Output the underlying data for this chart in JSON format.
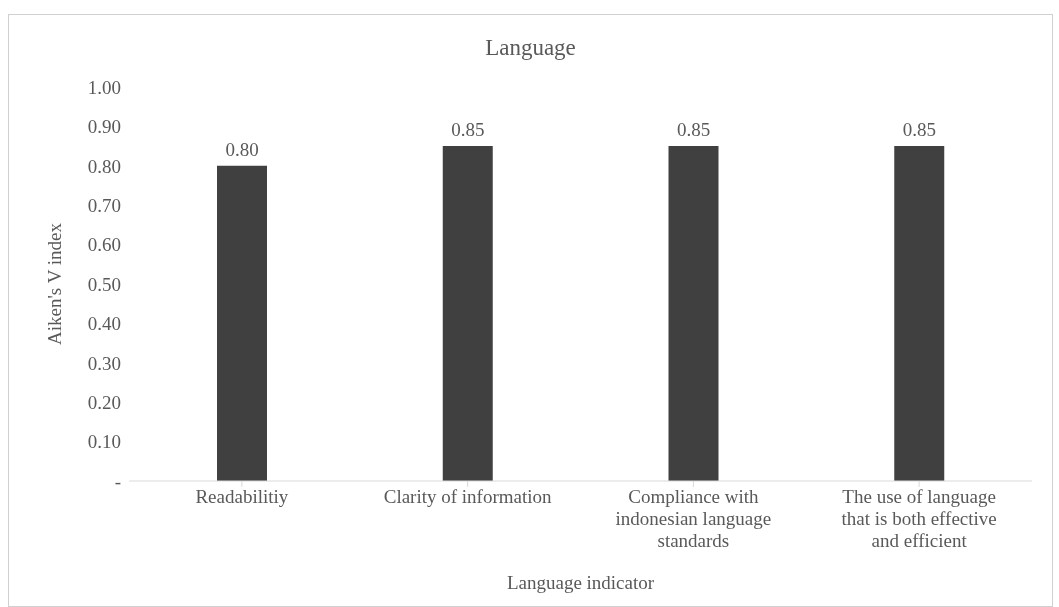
{
  "chart_data": {
    "type": "bar",
    "title": "Language",
    "xlabel": "Language indicator",
    "ylabel": "Aiken's V index",
    "categories": [
      "Readabilitiy",
      "Clarity of information",
      "Compliance with indonesian language standards",
      "The use of language that is both effective and efficient"
    ],
    "values": [
      0.8,
      0.85,
      0.85,
      0.85
    ],
    "color": "#404040",
    "value_labels": [
      "0.80",
      "0.85",
      "0.85",
      "0.85"
    ],
    "ylim": [
      0,
      1
    ],
    "yticks": [
      {
        "value": 0,
        "label": "-"
      },
      {
        "value": 0.1,
        "label": "0.10"
      },
      {
        "value": 0.2,
        "label": "0.20"
      },
      {
        "value": 0.3,
        "label": "0.30"
      },
      {
        "value": 0.4,
        "label": "0.40"
      },
      {
        "value": 0.5,
        "label": "0.50"
      },
      {
        "value": 0.6,
        "label": "0.60"
      },
      {
        "value": 0.7,
        "label": "0.70"
      },
      {
        "value": 0.8,
        "label": "0.80"
      },
      {
        "value": 0.9,
        "label": "0.90"
      },
      {
        "value": 1,
        "label": "1.00"
      }
    ],
    "grid": false,
    "legend": false
  }
}
